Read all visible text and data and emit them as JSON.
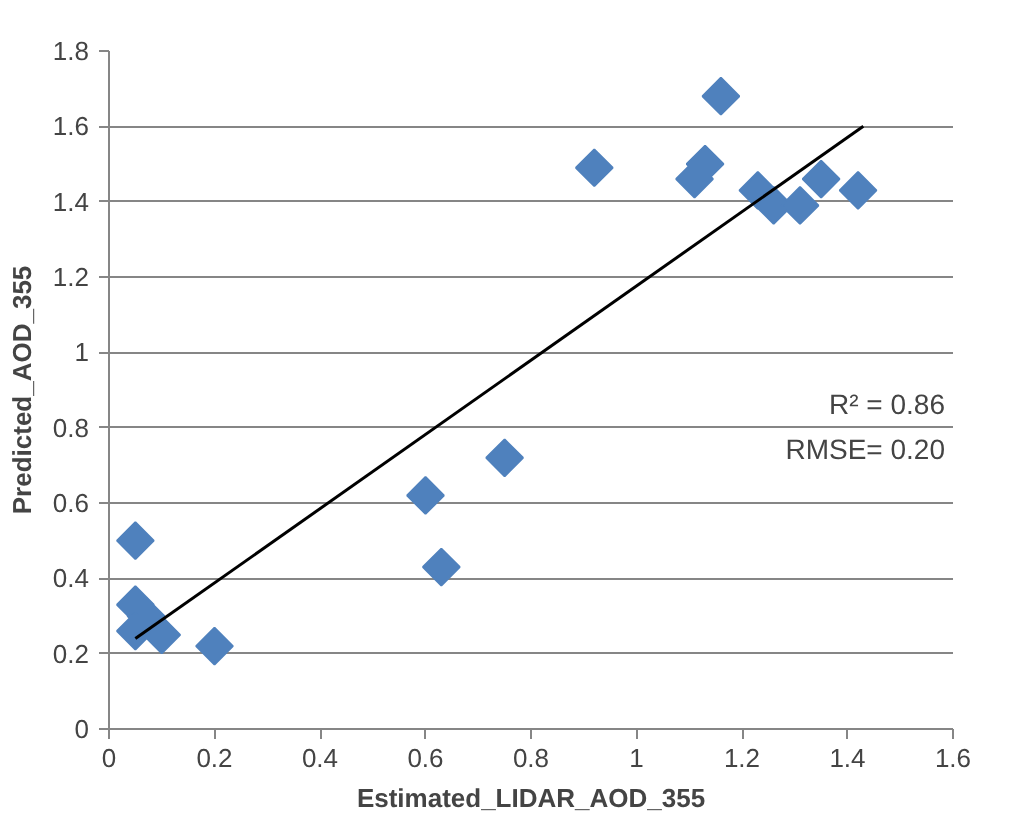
{
  "chart_data": {
    "type": "scatter",
    "xlabel": "Estimated_LIDAR_AOD_355",
    "ylabel": "Predicted_AOD_355",
    "annotations": [
      "R² = 0.86",
      "RMSE= 0.20"
    ],
    "xlim": [
      0,
      1.6
    ],
    "xticks": [
      0,
      0.2,
      0.4,
      0.6,
      0.8,
      1,
      1.2,
      1.4,
      1.6
    ],
    "ylim": [
      0,
      1.8
    ],
    "yticks": [
      0,
      0.2,
      0.4,
      0.6,
      0.8,
      1,
      1.2,
      1.4,
      1.6,
      1.8
    ],
    "grid": "y",
    "series": [
      {
        "marker": "diamond",
        "color": "#4f81bd",
        "x": [
          0.05,
          0.05,
          0.07,
          0.05,
          0.1,
          0.2,
          0.6,
          0.63,
          0.75,
          0.92,
          1.11,
          1.13,
          1.16,
          1.23,
          1.26,
          1.31,
          1.35,
          1.42
        ],
        "values": [
          0.5,
          0.33,
          0.3,
          0.26,
          0.25,
          0.22,
          0.62,
          0.43,
          0.72,
          1.49,
          1.46,
          1.5,
          1.68,
          1.43,
          1.39,
          1.39,
          1.46,
          1.43
        ]
      },
      {
        "type": "line",
        "color": "#000000",
        "x": [
          0.05,
          1.43
        ],
        "values": [
          0.24,
          1.6
        ]
      }
    ]
  }
}
